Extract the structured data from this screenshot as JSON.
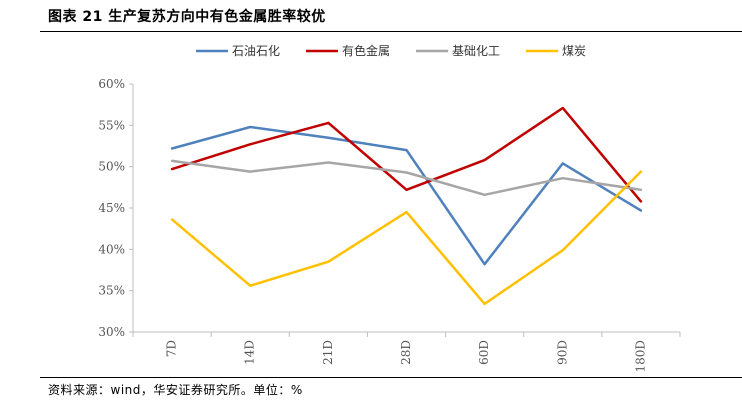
{
  "figure": {
    "title": "图表 21 生产复苏方向中有色金属胜率较优",
    "source": "资料来源：wind，华安证券研究所。单位：%"
  },
  "chart_data": {
    "type": "line",
    "title": "图表 21 生产复苏方向中有色金属胜率较优",
    "categories": [
      "7D",
      "14D",
      "21D",
      "28D",
      "60D",
      "90D",
      "180D"
    ],
    "ylim": [
      30,
      60
    ],
    "yticks": [
      "30%",
      "35%",
      "40%",
      "45%",
      "50%",
      "55%",
      "60%"
    ],
    "ytick_values": [
      30,
      35,
      40,
      45,
      50,
      55,
      60
    ],
    "xlabel": "",
    "ylabel": "",
    "grid": false,
    "legend_position": "top",
    "series": [
      {
        "name": "石油石化",
        "color": "#4f81bd",
        "values": [
          52.2,
          54.8,
          53.5,
          52.0,
          38.2,
          50.4,
          44.7
        ]
      },
      {
        "name": "有色金属",
        "color": "#c00000",
        "values": [
          49.7,
          52.7,
          55.3,
          47.2,
          50.8,
          57.1,
          45.8
        ]
      },
      {
        "name": "基础化工",
        "color": "#a6a6a6",
        "values": [
          50.7,
          49.4,
          50.5,
          49.3,
          46.6,
          48.6,
          47.2
        ]
      },
      {
        "name": "煤炭",
        "color": "#ffc000",
        "values": [
          43.6,
          35.6,
          38.5,
          44.5,
          33.4,
          39.9,
          49.4
        ]
      }
    ]
  }
}
